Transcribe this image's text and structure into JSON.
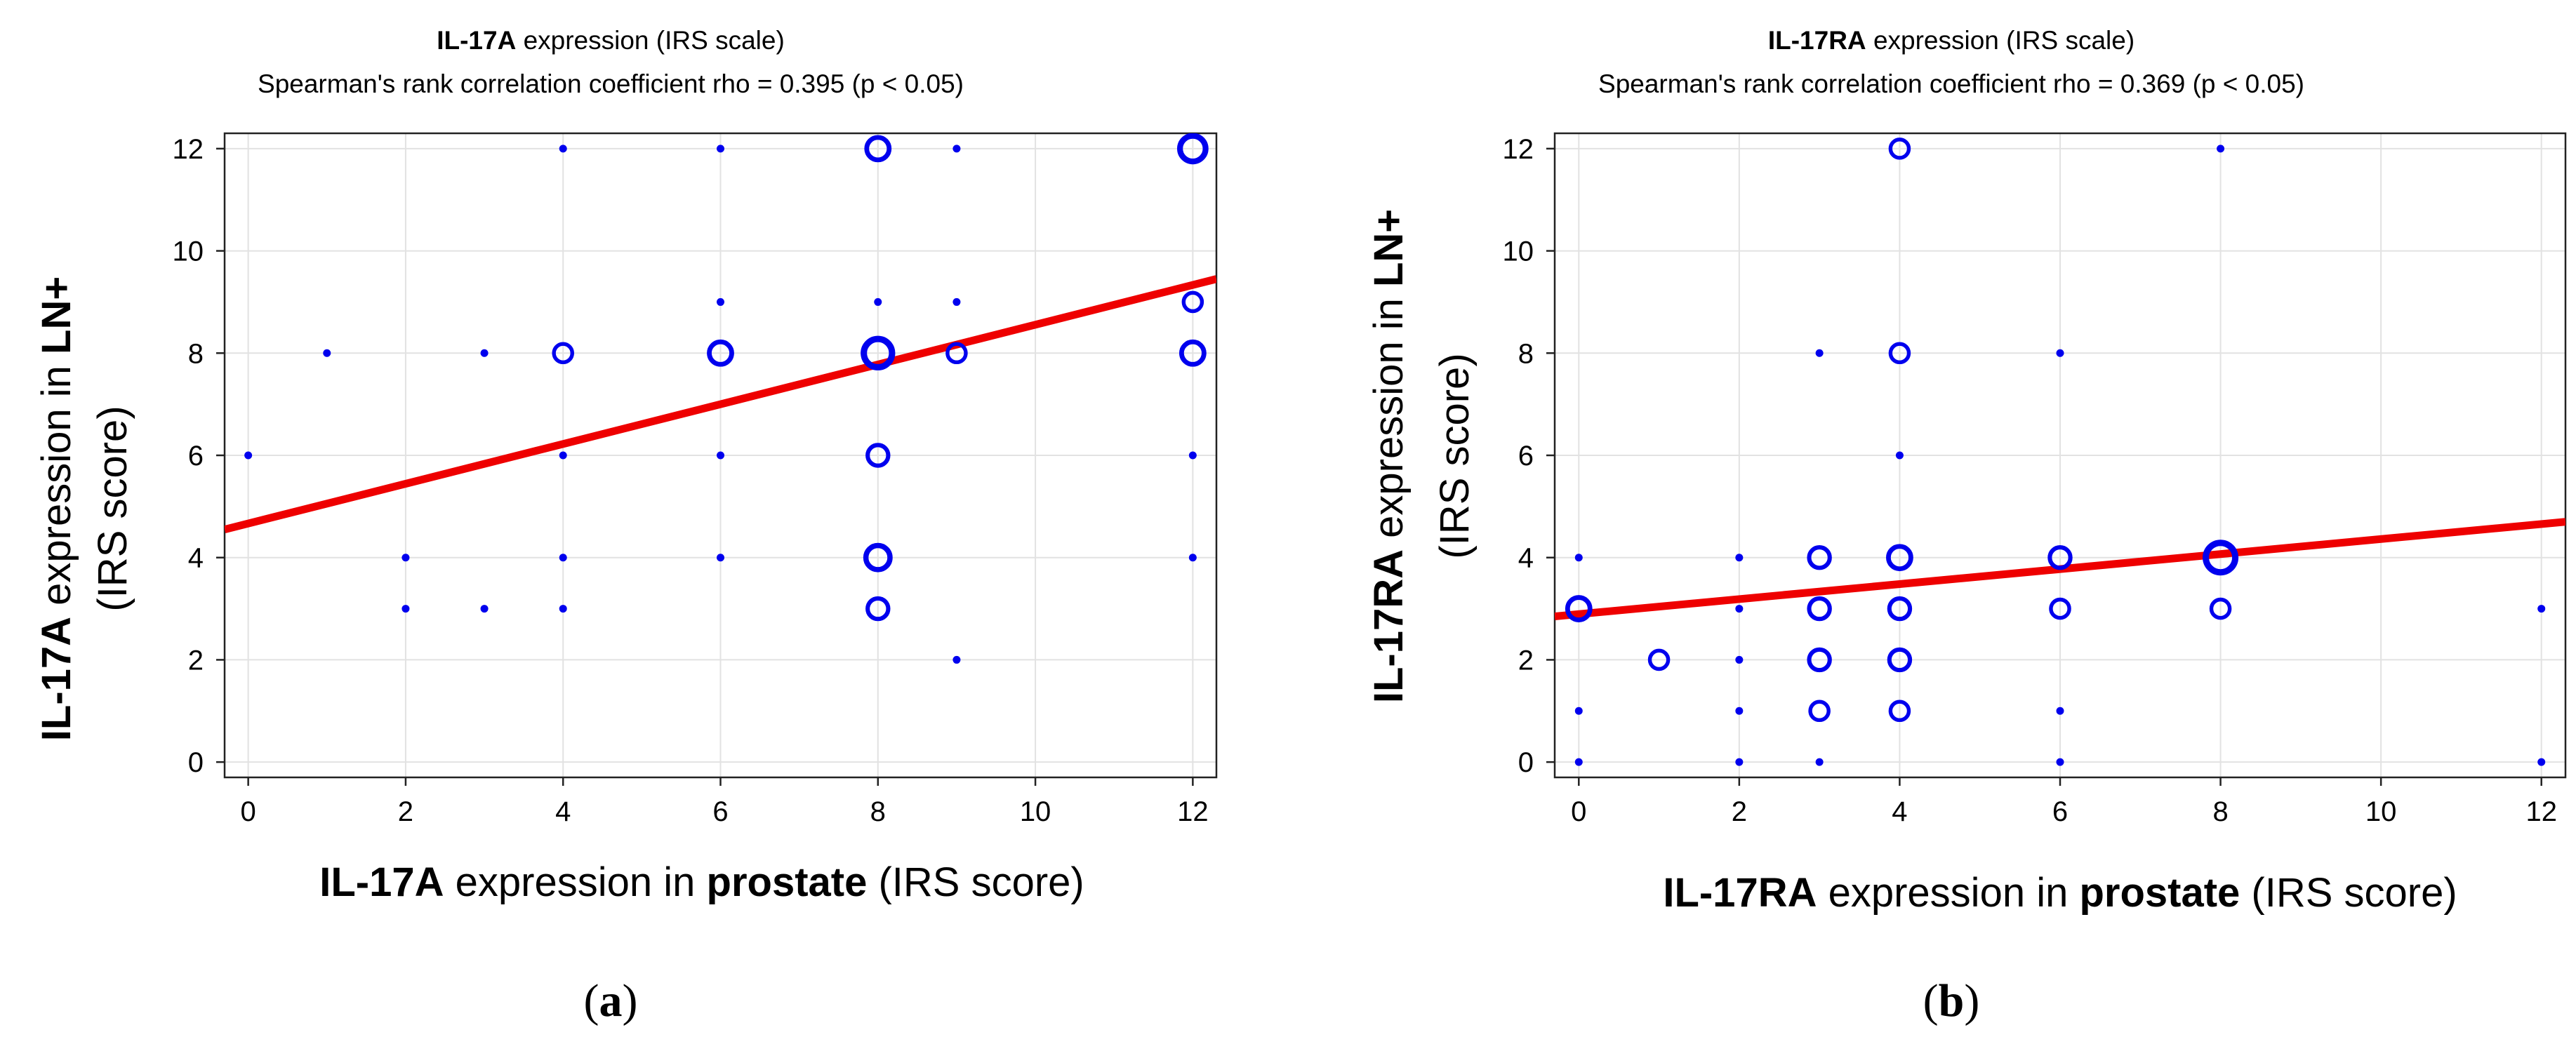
{
  "chart_data": [
    {
      "type": "scatter",
      "panel_label": {
        "open": "(",
        "letter": "a",
        "close": ")"
      },
      "title_line1": {
        "bold": "IL-17A",
        "rest": " expression (IRS scale)"
      },
      "title_line2": "Spearman's rank correlation coefficient rho = 0.395 (p < 0.05)",
      "xlabel": {
        "bold1": "IL-17A",
        "mid": " expression in ",
        "bold2": "prostate",
        "end": " (IRS score)"
      },
      "ylabel_line1": {
        "bold1": "IL-17A",
        "mid": " expression in ",
        "bold2": "LN+"
      },
      "ylabel_line2": "(IRS score)",
      "xlim": [
        -0.3,
        12.3
      ],
      "ylim": [
        -0.3,
        12.3
      ],
      "xticks": [
        0,
        2,
        4,
        6,
        8,
        10,
        12
      ],
      "yticks": [
        0,
        2,
        4,
        6,
        8,
        10,
        12
      ],
      "grid": true,
      "point_color": "#0000ee",
      "line_color": "#ee0000",
      "regression": {
        "x": [
          -0.3,
          12.3
        ],
        "y": [
          4.55,
          9.45
        ]
      },
      "points": [
        {
          "x": 0,
          "y": 6,
          "n": 1
        },
        {
          "x": 1,
          "y": 8,
          "n": 1
        },
        {
          "x": 2,
          "y": 4,
          "n": 1
        },
        {
          "x": 2,
          "y": 3,
          "n": 1
        },
        {
          "x": 3,
          "y": 8,
          "n": 1
        },
        {
          "x": 3,
          "y": 3,
          "n": 1
        },
        {
          "x": 4,
          "y": 12,
          "n": 1
        },
        {
          "x": 4,
          "y": 8,
          "n": 2
        },
        {
          "x": 4,
          "y": 6,
          "n": 1
        },
        {
          "x": 4,
          "y": 4,
          "n": 1
        },
        {
          "x": 4,
          "y": 3,
          "n": 1
        },
        {
          "x": 6,
          "y": 12,
          "n": 1
        },
        {
          "x": 6,
          "y": 9,
          "n": 1
        },
        {
          "x": 6,
          "y": 8,
          "n": 4
        },
        {
          "x": 6,
          "y": 6,
          "n": 1
        },
        {
          "x": 6,
          "y": 4,
          "n": 1
        },
        {
          "x": 8,
          "y": 12,
          "n": 4
        },
        {
          "x": 8,
          "y": 9,
          "n": 1
        },
        {
          "x": 8,
          "y": 8,
          "n": 8
        },
        {
          "x": 8,
          "y": 6,
          "n": 3
        },
        {
          "x": 8,
          "y": 4,
          "n": 5
        },
        {
          "x": 8,
          "y": 3,
          "n": 3
        },
        {
          "x": 9,
          "y": 12,
          "n": 1
        },
        {
          "x": 9,
          "y": 9,
          "n": 1
        },
        {
          "x": 9,
          "y": 8,
          "n": 2
        },
        {
          "x": 9,
          "y": 2,
          "n": 1
        },
        {
          "x": 12,
          "y": 12,
          "n": 6
        },
        {
          "x": 12,
          "y": 9,
          "n": 2
        },
        {
          "x": 12,
          "y": 8,
          "n": 4
        },
        {
          "x": 12,
          "y": 6,
          "n": 1
        },
        {
          "x": 12,
          "y": 4,
          "n": 1
        }
      ]
    },
    {
      "type": "scatter",
      "panel_label": {
        "open": "(",
        "letter": "b",
        "close": ")"
      },
      "title_line1": {
        "bold": "IL-17RA",
        "rest": " expression (IRS scale)"
      },
      "title_line2": "Spearman's rank correlation coefficient rho = 0.369 (p < 0.05)",
      "xlabel": {
        "bold1": "IL-17RA",
        "mid": " expression in ",
        "bold2": "prostate",
        "end": " (IRS score)"
      },
      "ylabel_line1": {
        "bold1": "IL-17RA",
        "mid": " expression in ",
        "bold2": "LN+"
      },
      "ylabel_line2": "(IRS score)",
      "xlim": [
        -0.3,
        12.3
      ],
      "ylim": [
        -0.3,
        12.3
      ],
      "xticks": [
        0,
        2,
        4,
        6,
        8,
        10,
        12
      ],
      "yticks": [
        0,
        2,
        4,
        6,
        8,
        10,
        12
      ],
      "grid": true,
      "point_color": "#0000ee",
      "line_color": "#ee0000",
      "regression": {
        "x": [
          -0.3,
          12.3
        ],
        "y": [
          2.85,
          4.7
        ]
      },
      "points": [
        {
          "x": 0,
          "y": 4,
          "n": 1
        },
        {
          "x": 0,
          "y": 3,
          "n": 4
        },
        {
          "x": 0,
          "y": 1,
          "n": 1
        },
        {
          "x": 0,
          "y": 0,
          "n": 1
        },
        {
          "x": 1,
          "y": 2,
          "n": 2
        },
        {
          "x": 2,
          "y": 4,
          "n": 1
        },
        {
          "x": 2,
          "y": 3,
          "n": 1
        },
        {
          "x": 2,
          "y": 2,
          "n": 1
        },
        {
          "x": 2,
          "y": 1,
          "n": 1
        },
        {
          "x": 2,
          "y": 0,
          "n": 1
        },
        {
          "x": 3,
          "y": 8,
          "n": 1
        },
        {
          "x": 3,
          "y": 4,
          "n": 3
        },
        {
          "x": 3,
          "y": 3,
          "n": 3
        },
        {
          "x": 3,
          "y": 2,
          "n": 3
        },
        {
          "x": 3,
          "y": 1,
          "n": 2
        },
        {
          "x": 3,
          "y": 0,
          "n": 1
        },
        {
          "x": 4,
          "y": 12,
          "n": 2
        },
        {
          "x": 4,
          "y": 8,
          "n": 2
        },
        {
          "x": 4,
          "y": 6,
          "n": 1
        },
        {
          "x": 4,
          "y": 4,
          "n": 4
        },
        {
          "x": 4,
          "y": 3,
          "n": 3
        },
        {
          "x": 4,
          "y": 2,
          "n": 3
        },
        {
          "x": 4,
          "y": 1,
          "n": 2
        },
        {
          "x": 6,
          "y": 8,
          "n": 1
        },
        {
          "x": 6,
          "y": 4,
          "n": 3
        },
        {
          "x": 6,
          "y": 3,
          "n": 2
        },
        {
          "x": 6,
          "y": 1,
          "n": 1
        },
        {
          "x": 6,
          "y": 0,
          "n": 1
        },
        {
          "x": 8,
          "y": 12,
          "n": 1
        },
        {
          "x": 8,
          "y": 4,
          "n": 9
        },
        {
          "x": 8,
          "y": 3,
          "n": 2
        },
        {
          "x": 12,
          "y": 3,
          "n": 1
        },
        {
          "x": 12,
          "y": 0,
          "n": 1
        }
      ]
    }
  ]
}
